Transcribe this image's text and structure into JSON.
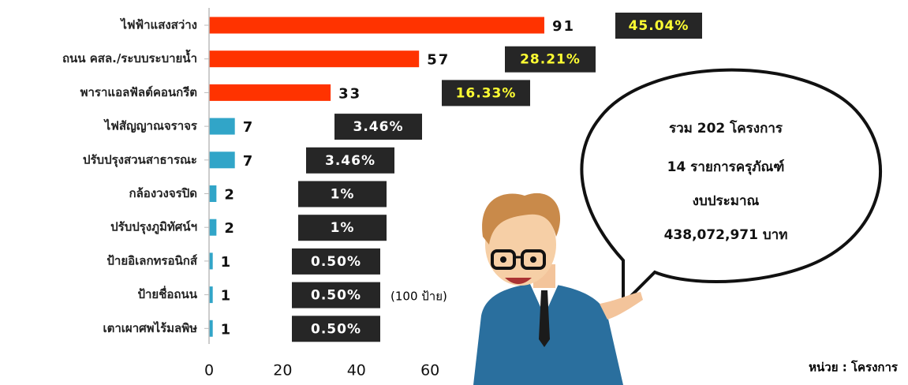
{
  "chart_data": {
    "type": "hbar",
    "categories": [
      "ไฟฟ้าแสงสว่าง",
      "ถนน คสล./ระบบระบายน้ำ",
      "พาราแอลฟัลต์คอนกรีต",
      "ไฟสัญญาณจราจร",
      "ปรับปรุงสวนสาธารณะ",
      "กล้องวงจรปิด",
      "ปรับปรุงภูมิทัศน์ฯ",
      "ป้ายอิเลกทรอนิกส์",
      "ป้ายชื่อถนน",
      "เตาเผาศพไร้มลพิษ"
    ],
    "values": [
      91,
      57,
      33,
      7,
      7,
      2,
      2,
      1,
      1,
      1
    ],
    "colors": [
      "#ff3300",
      "#ff3300",
      "#ff3300",
      "#31a5c8",
      "#31a5c8",
      "#31a5c8",
      "#31a5c8",
      "#31a5c8",
      "#31a5c8",
      "#31a5c8"
    ],
    "share_labels": [
      "45.04%",
      "28.21%",
      "16.33%",
      "3.46%",
      "3.46%",
      "1%",
      "1%",
      "0.50%",
      "0.50%",
      "0.50%"
    ],
    "share_label_colors": [
      "#ffff33",
      "#ffff33",
      "#ffff33",
      "#ffffff",
      "#ffffff",
      "#ffffff",
      "#ffffff",
      "#ffffff",
      "#ffffff",
      "#ffffff"
    ],
    "xlim": [
      0,
      100
    ],
    "xticks": [
      0,
      20,
      40,
      60
    ],
    "annotation": "(100 ป้าย)",
    "summary": [
      "รวม  202 โครงการ",
      "14 รายการครุภัณฑ์",
      "งบประมาณ",
      "438,072,971 บาท"
    ],
    "unit_label": "หน่วย : โครงการ"
  }
}
